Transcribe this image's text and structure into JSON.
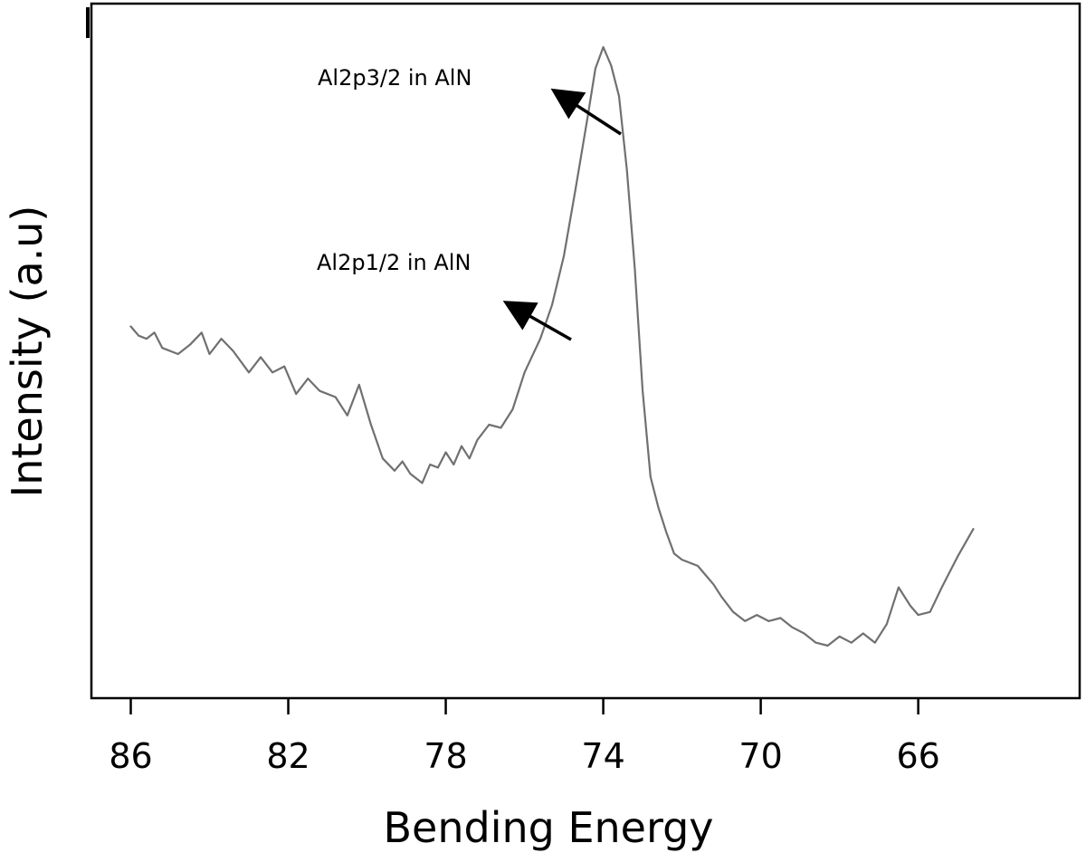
{
  "chart_data": {
    "type": "line",
    "xlabel": "Bending Energy",
    "ylabel": "Intensity (a.u)",
    "x_reversed": true,
    "xlim": [
      87.0,
      61.9
    ],
    "ylim": [
      0,
      100
    ],
    "x_ticks": [
      86,
      82,
      78,
      74,
      70,
      66
    ],
    "grid": false,
    "legend": "none",
    "line_color": "#707070",
    "series": [
      {
        "x": [
          86.0,
          85.8,
          85.6,
          85.4,
          85.2,
          84.8,
          84.5,
          84.2,
          84.0,
          83.7,
          83.4,
          83.0,
          82.7,
          82.4,
          82.1,
          81.8,
          81.5,
          81.2,
          80.8,
          80.5,
          80.2,
          79.9,
          79.6,
          79.3,
          79.1,
          78.9,
          78.6,
          78.4,
          78.2,
          78.0,
          77.8,
          77.6,
          77.4,
          77.2,
          76.9,
          76.6,
          76.3,
          76.0,
          75.6,
          75.3,
          75.0,
          74.7,
          74.4,
          74.2,
          74.0,
          73.8,
          73.6,
          73.4,
          73.2,
          73.0,
          72.8,
          72.6,
          72.4,
          72.2,
          72.0,
          71.8,
          71.6,
          71.4,
          71.2,
          71.0,
          70.7,
          70.4,
          70.1,
          69.8,
          69.5,
          69.2,
          68.9,
          68.6,
          68.3,
          68.0,
          67.7,
          67.4,
          67.1,
          66.8,
          66.5,
          66.2,
          66.0,
          65.7,
          65.4,
          65.0,
          64.6
        ],
        "y": [
          54.5,
          53.0,
          52.5,
          53.5,
          51.0,
          50.0,
          51.5,
          53.5,
          50.0,
          52.5,
          50.5,
          47.0,
          49.5,
          47.0,
          48.0,
          43.5,
          46.0,
          44.0,
          43.0,
          40.0,
          45.0,
          38.5,
          33.0,
          31.0,
          32.5,
          30.5,
          29.0,
          32.0,
          31.5,
          34.0,
          32.0,
          35.0,
          33.0,
          36.0,
          38.5,
          38.0,
          41.0,
          47.0,
          52.5,
          58.0,
          66.0,
          77.0,
          88.5,
          96.5,
          100.0,
          97.0,
          92.0,
          80.0,
          64.0,
          44.0,
          30.0,
          25.0,
          21.0,
          17.5,
          16.5,
          16.0,
          15.5,
          14.0,
          12.5,
          10.5,
          8.0,
          6.5,
          7.5,
          6.5,
          7.0,
          5.5,
          4.5,
          3.0,
          2.5,
          4.0,
          3.0,
          4.5,
          3.0,
          6.0,
          12.0,
          9.0,
          7.5,
          8.0,
          12.0,
          17.0,
          21.5
        ]
      }
    ],
    "annotations": [
      {
        "text": "Al2p3/2 in AlN",
        "arrow_to": "peak"
      },
      {
        "text": "Al2p1/2 in AlN",
        "arrow_to": "shoulder"
      }
    ]
  }
}
